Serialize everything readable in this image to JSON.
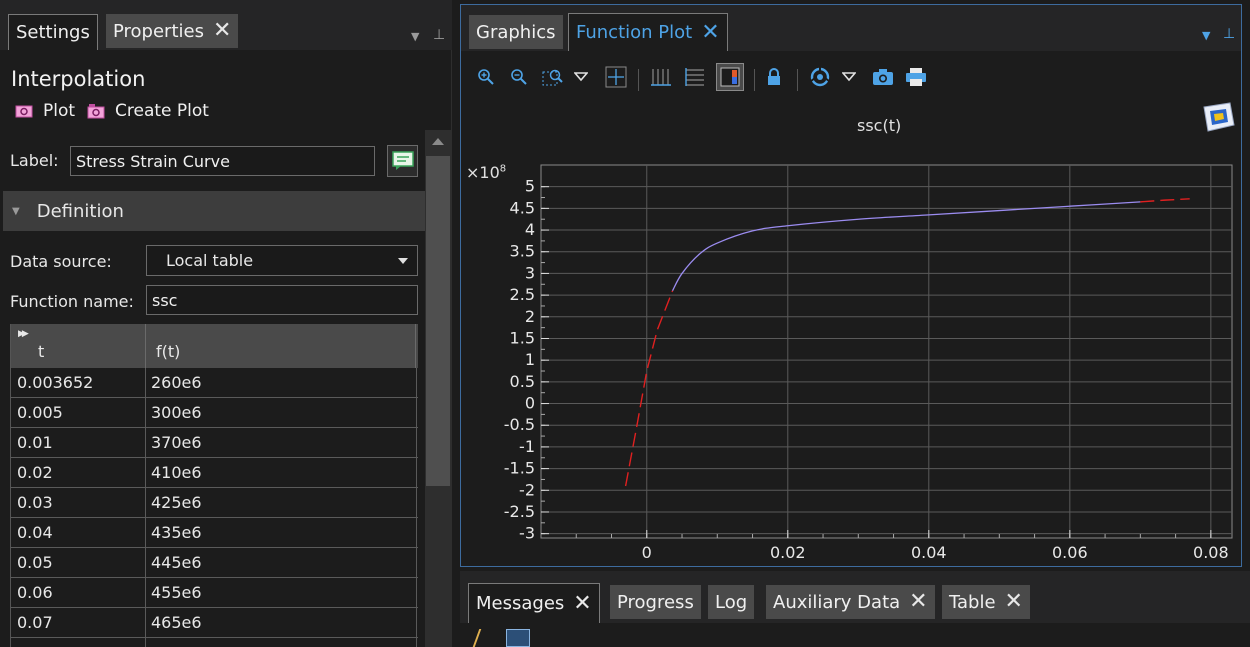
{
  "left_panel": {
    "tabs": [
      {
        "label": "Settings"
      },
      {
        "label": "Properties",
        "close": "✕"
      }
    ],
    "section_title": "Interpolation",
    "actions": {
      "plot": "Plot",
      "create_plot": "Create Plot"
    },
    "label_field": {
      "label": "Label:",
      "value": "Stress Strain Curve"
    },
    "definition": {
      "header": "Definition"
    },
    "data_source": {
      "label": "Data source:",
      "value": "Local table"
    },
    "function_name": {
      "label": "Function name:",
      "value": "ssc"
    },
    "table": {
      "columns": [
        "t",
        "f(t)"
      ],
      "rows": [
        [
          "0.003652",
          "260e6"
        ],
        [
          "0.005",
          "300e6"
        ],
        [
          "0.01",
          "370e6"
        ],
        [
          "0.02",
          "410e6"
        ],
        [
          "0.03",
          "425e6"
        ],
        [
          "0.04",
          "435e6"
        ],
        [
          "0.05",
          "445e6"
        ],
        [
          "0.06",
          "455e6"
        ],
        [
          "0.07",
          "465e6"
        ]
      ]
    }
  },
  "right_panel": {
    "tabs": [
      {
        "label": "Graphics"
      },
      {
        "label": "Function Plot",
        "close": "✕"
      }
    ],
    "toolbar": [
      "zoom-in-icon",
      "zoom-out-icon",
      "zoom-box-icon",
      "dropdown-icon",
      "zoom-extents-icon",
      "grid-icon",
      "grid-lines-icon",
      "color-table-icon",
      "lock-icon",
      "scene-light-icon",
      "dropdown-icon",
      "camera-icon",
      "print-icon"
    ]
  },
  "chart_data": {
    "type": "line",
    "title": "ssc(t)",
    "y_multiplier": "×10",
    "y_multiplier_exp": "8",
    "xlim": [
      -0.015,
      0.083
    ],
    "ylim": [
      -3.1,
      5.5
    ],
    "xticks": [
      "0",
      "0.02",
      "0.04",
      "0.06",
      "0.08"
    ],
    "xtick_values": [
      0,
      0.02,
      0.04,
      0.06,
      0.08
    ],
    "yticks": [
      "5",
      "4.5",
      "4",
      "3.5",
      "3",
      "2.5",
      "2",
      "1.5",
      "1",
      "0.5",
      "0",
      "-0.5",
      "-1",
      "-1.5",
      "-2",
      "-2.5",
      "-3"
    ],
    "ytick_values": [
      5,
      4.5,
      4,
      3.5,
      3,
      2.5,
      2,
      1.5,
      1,
      0.5,
      0,
      -0.5,
      -1,
      -1.5,
      -2,
      -2.5,
      -3
    ],
    "grid": true,
    "series": [
      {
        "color": "#9b8cf0",
        "style": "solid",
        "x": [
          0.003652,
          0.005,
          0.0075,
          0.01,
          0.015,
          0.02,
          0.03,
          0.04,
          0.05,
          0.06,
          0.07
        ],
        "y": [
          2.6,
          3.0,
          3.45,
          3.7,
          3.98,
          4.1,
          4.25,
          4.35,
          4.45,
          4.55,
          4.65
        ]
      },
      {
        "color": "#e02020",
        "style": "dashed",
        "x": [
          -0.003,
          -0.0015,
          0,
          0.0015,
          0.003652
        ],
        "y": [
          -1.9,
          -0.6,
          0.75,
          1.7,
          2.6
        ]
      },
      {
        "color": "#e02020",
        "style": "dashed",
        "x": [
          0.07,
          0.0735,
          0.077
        ],
        "y": [
          4.65,
          4.69,
          4.72
        ]
      }
    ]
  },
  "bottom_panel": {
    "tabs": [
      {
        "label": "Messages",
        "close": "✕"
      },
      {
        "label": "Progress"
      },
      {
        "label": "Log"
      },
      {
        "label": "Auxiliary Data",
        "close": "✕"
      },
      {
        "label": "Table",
        "close": "✕"
      }
    ]
  },
  "colors": {
    "accent": "#4ea3e6",
    "background": "#1c1c1c",
    "panel_tab": "#4a4a4a"
  }
}
